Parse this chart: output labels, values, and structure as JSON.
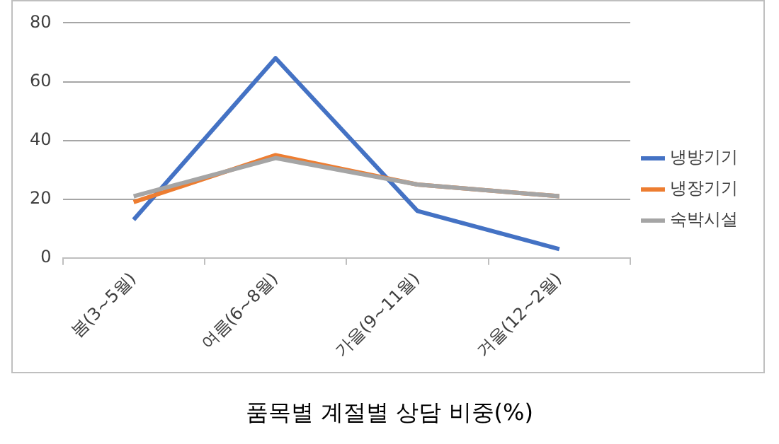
{
  "chart_data": {
    "type": "line",
    "title": "품목별 계절별 상담 비중(%)",
    "categories": [
      "봄(3~5월)",
      "여름(6~8월)",
      "가을(9~11월)",
      "겨울(12~2월)"
    ],
    "series": [
      {
        "name": "냉방기기",
        "color": "#4472c4",
        "values": [
          13,
          68,
          16,
          3
        ]
      },
      {
        "name": "냉장기기",
        "color": "#ed7d31",
        "values": [
          19,
          35,
          25,
          21
        ]
      },
      {
        "name": "숙박시설",
        "color": "#a5a5a5",
        "values": [
          21,
          34,
          25,
          21
        ]
      }
    ],
    "ylim": [
      0,
      80
    ],
    "yticks": [
      0,
      20,
      40,
      60,
      80
    ],
    "grid": "y",
    "legend": "right",
    "marker": "none",
    "line_style": "solid"
  }
}
